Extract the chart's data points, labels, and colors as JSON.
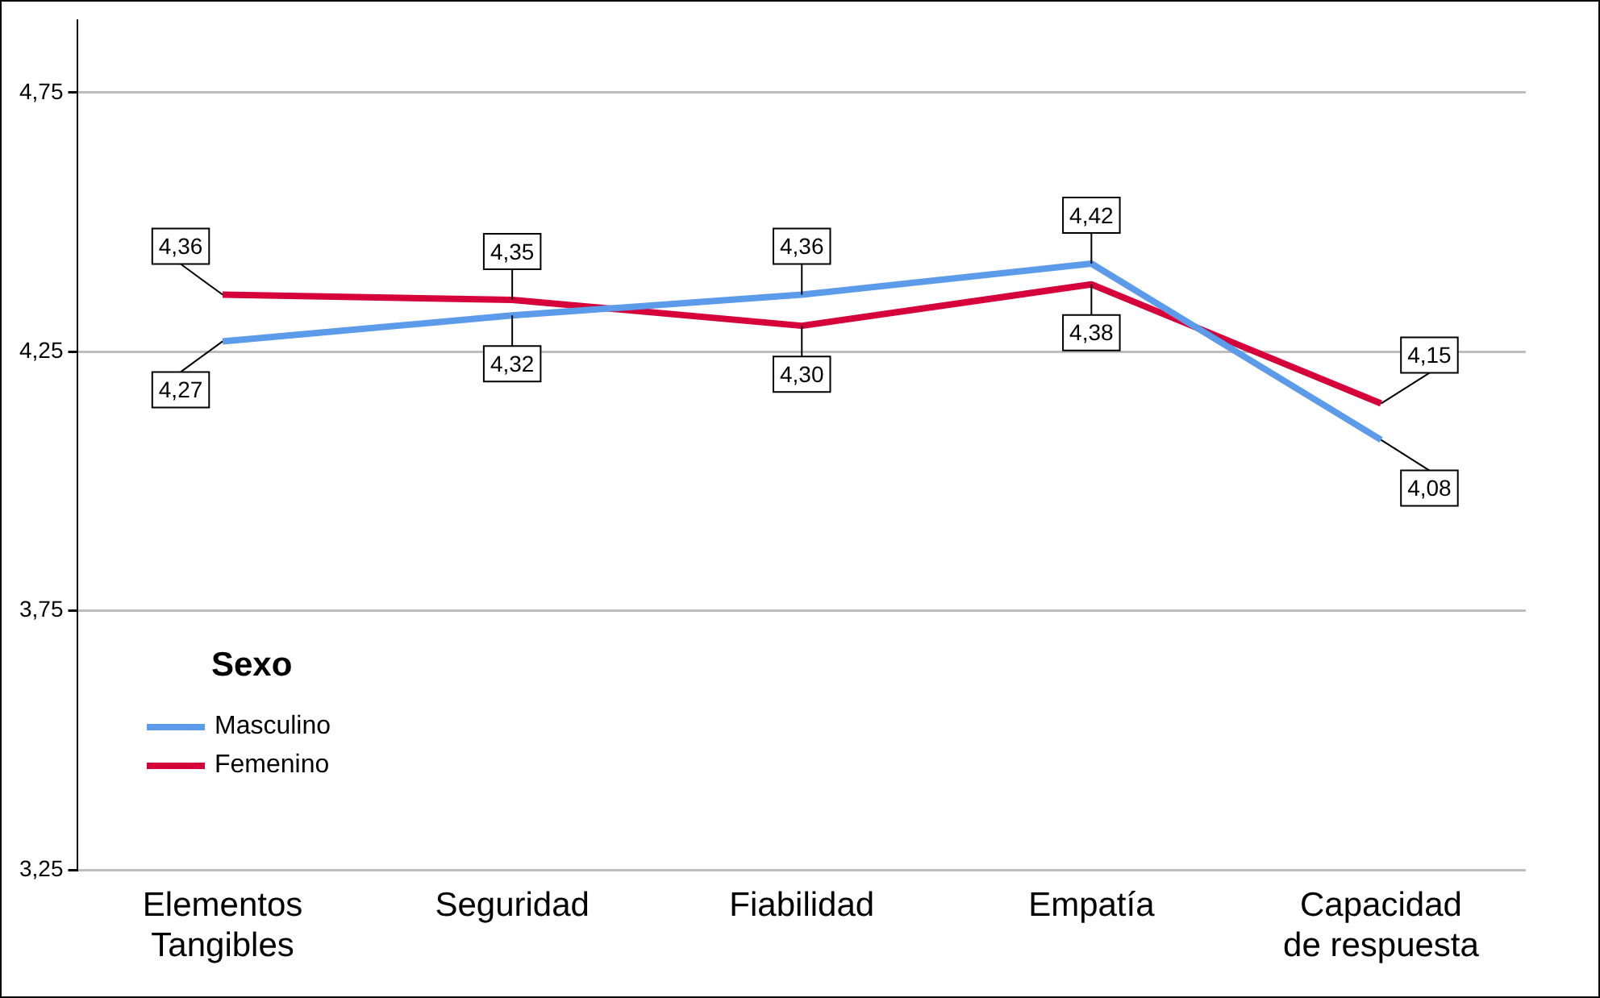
{
  "chart_data": {
    "type": "line",
    "categories": [
      "Elementos Tangibles",
      "Seguridad",
      "Fiabilidad",
      "Empatía",
      "Capacidad de respuesta"
    ],
    "series": [
      {
        "name": "Masculino",
        "color": "#5b9bea",
        "values": [
          4.27,
          4.32,
          4.36,
          4.42,
          4.08
        ],
        "value_labels": [
          "4,27",
          "4,32",
          "4,36",
          "4,42",
          "4,08"
        ]
      },
      {
        "name": "Femenino",
        "color": "#d6003a",
        "values": [
          4.36,
          4.35,
          4.3,
          4.38,
          4.15
        ],
        "value_labels": [
          "4,36",
          "4,35",
          "4,30",
          "4,38",
          "4,15"
        ]
      }
    ],
    "ylim": [
      3.25,
      4.89
    ],
    "yticks": [
      {
        "value": 3.25,
        "label": "3,25"
      },
      {
        "value": 3.75,
        "label": "3,75"
      },
      {
        "value": 4.25,
        "label": "4,25"
      },
      {
        "value": 4.75,
        "label": "4,75"
      }
    ],
    "grid": "y",
    "legend": "bottom left",
    "legend_title": "Sexo",
    "marker": "none",
    "line_style": "solid"
  }
}
